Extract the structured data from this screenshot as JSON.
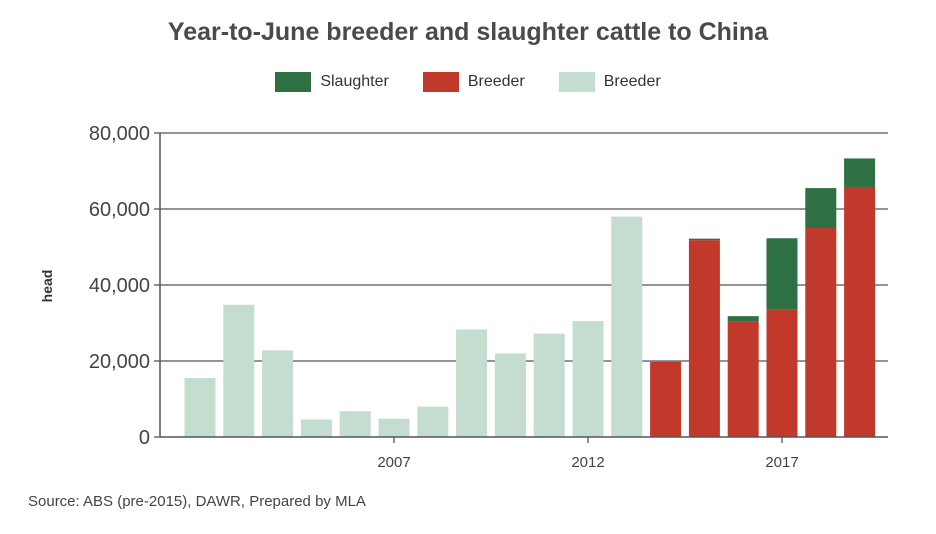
{
  "chart_data": {
    "type": "bar",
    "title": "Year-to-June breeder and slaughter cattle to China",
    "ylabel": "head",
    "xlabel": "",
    "ylim": [
      0,
      80000
    ],
    "yticks": [
      0,
      20000,
      40000,
      60000,
      80000
    ],
    "ytick_labels": [
      "0",
      "20,000",
      "40,000",
      "60,000",
      "80,000"
    ],
    "x": [
      2002,
      2003,
      2004,
      2005,
      2006,
      2007,
      2008,
      2009,
      2010,
      2011,
      2012,
      2013,
      2014,
      2015,
      2016,
      2017,
      2018,
      2019,
      2020
    ],
    "xtick_labels": [
      {
        "year": 2007,
        "label": "2007"
      },
      {
        "year": 2012,
        "label": "2012"
      },
      {
        "year": 2017,
        "label": "2017"
      }
    ],
    "stacked": true,
    "series": [
      {
        "name": "Breeder",
        "color": "#c5ddd0",
        "values": [
          15500,
          34800,
          22800,
          4600,
          6800,
          4800,
          8000,
          28300,
          22000,
          27200,
          30500,
          58000,
          null,
          null,
          null,
          null,
          null,
          null,
          null
        ]
      },
      {
        "name": "Breeder",
        "color": "#c0392b",
        "values": [
          null,
          null,
          null,
          null,
          null,
          null,
          null,
          null,
          null,
          null,
          null,
          null,
          19800,
          51800,
          30500,
          33500,
          55000,
          65800,
          null
        ]
      },
      {
        "name": "Slaughter",
        "color": "#2e7043",
        "values": [
          null,
          null,
          null,
          null,
          null,
          null,
          null,
          null,
          null,
          null,
          null,
          null,
          0,
          400,
          1300,
          18800,
          10500,
          7500,
          null
        ]
      }
    ],
    "legend": [
      {
        "label": "Slaughter",
        "color": "#2e7043"
      },
      {
        "label": "Breeder",
        "color": "#c0392b"
      },
      {
        "label": "Breeder",
        "color": "#c5ddd0"
      }
    ],
    "legend_position": "top-center",
    "grid": true
  },
  "source": "Source: ABS (pre-2015), DAWR, Prepared by MLA"
}
